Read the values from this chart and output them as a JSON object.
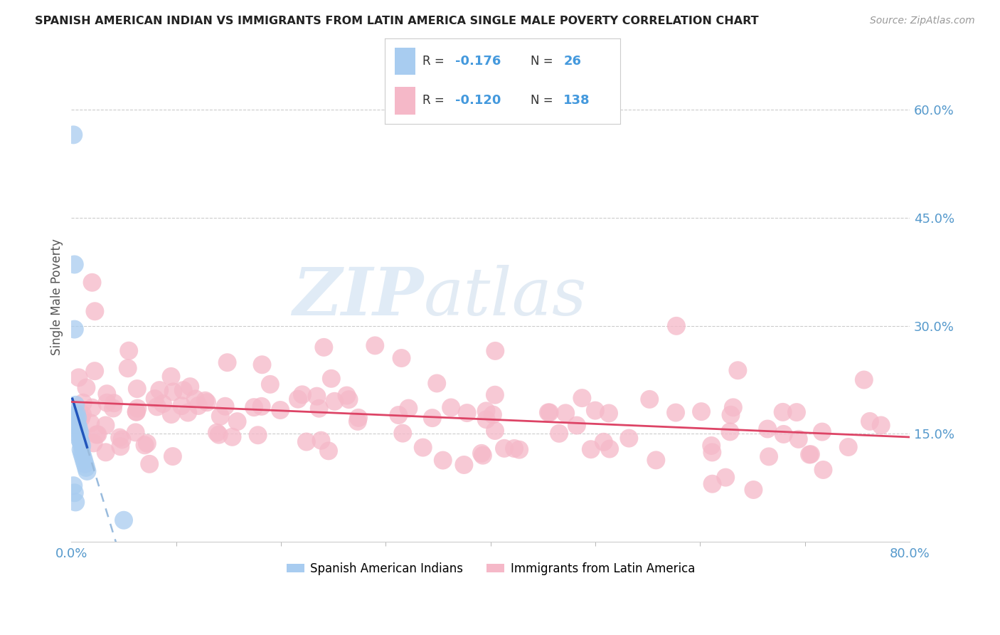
{
  "title": "SPANISH AMERICAN INDIAN VS IMMIGRANTS FROM LATIN AMERICA SINGLE MALE POVERTY CORRELATION CHART",
  "source": "Source: ZipAtlas.com",
  "ylabel": "Single Male Poverty",
  "right_yticks": [
    "60.0%",
    "45.0%",
    "30.0%",
    "15.0%"
  ],
  "right_ytick_vals": [
    0.6,
    0.45,
    0.3,
    0.15
  ],
  "legend_label1": "Spanish American Indians",
  "legend_label2": "Immigrants from Latin America",
  "R1": "-0.176",
  "N1": "26",
  "R2": "-0.120",
  "N2": "138",
  "color_blue": "#A8CCF0",
  "color_pink": "#F5B8C8",
  "color_trendline_blue": "#2255BB",
  "color_trendline_pink": "#DD4466",
  "color_trendline_blue_dash": "#99BBDD",
  "background": "#FFFFFF",
  "watermark_zip": "ZIP",
  "watermark_atlas": "atlas",
  "xlim": [
    0.0,
    0.8
  ],
  "ylim": [
    0.0,
    0.68
  ]
}
